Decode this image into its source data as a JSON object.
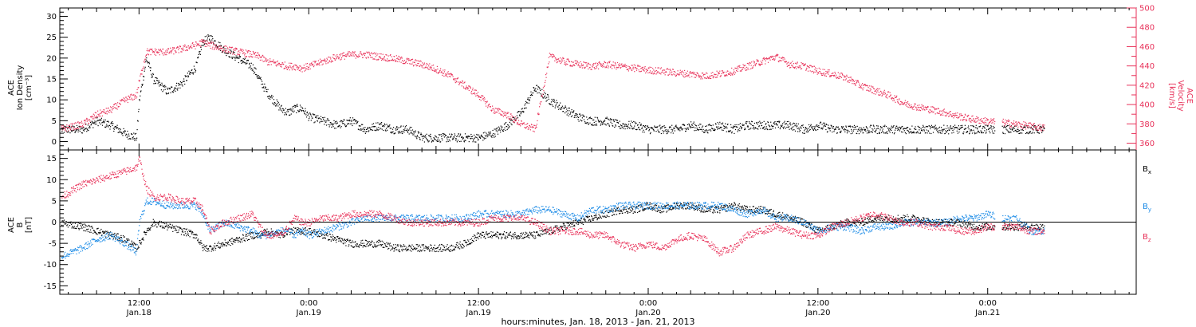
{
  "colors": {
    "black": "#000000",
    "red": "#e8325a",
    "blue": "#1a8ae6"
  },
  "x_axis": {
    "title": "hours:minutes, Jan. 18, 2013 - Jan. 21, 2013",
    "start_hour": 6.4,
    "end_hour": 82.5,
    "ticks": [
      {
        "hour": 12,
        "time": "12:00",
        "date": "Jan.18"
      },
      {
        "hour": 24,
        "time": "0:00",
        "date": "Jan.19"
      },
      {
        "hour": 36,
        "time": "12:00",
        "date": "Jan.19"
      },
      {
        "hour": 48,
        "time": "0:00",
        "date": "Jan.20"
      },
      {
        "hour": 60,
        "time": "12:00",
        "date": "Jan.20"
      },
      {
        "hour": 72,
        "time": "0:00",
        "date": "Jan.21"
      }
    ]
  },
  "chart_data": [
    {
      "type": "scatter",
      "panel": "top",
      "left_axis": {
        "label_lines": [
          "ACE",
          "Ion Density",
          "[cm⁻³]"
        ],
        "ylim": [
          -2,
          32
        ],
        "ticks": [
          0,
          5,
          10,
          15,
          20,
          25,
          30
        ]
      },
      "right_axis": {
        "label_lines": [
          "ACE",
          "Velocity",
          "[km/s]"
        ],
        "ylim": [
          353,
          500
        ],
        "ticks": [
          360,
          380,
          400,
          420,
          440,
          460,
          480,
          500
        ]
      },
      "series": [
        {
          "axis": "left",
          "color": "black",
          "hours": [
            6.5,
            8,
            9,
            10,
            11,
            11.8,
            12,
            12.5,
            13,
            14,
            15,
            16,
            16.5,
            17,
            18,
            19,
            20,
            20.5,
            21,
            22,
            22.5,
            23,
            23.5,
            24,
            25,
            26,
            27,
            28,
            29,
            30,
            31,
            32,
            33,
            34,
            35,
            36,
            37,
            38,
            39,
            40,
            41,
            42,
            43,
            44,
            45,
            46,
            47,
            48,
            49,
            50,
            51,
            52,
            53,
            54,
            55,
            56,
            57,
            58,
            59,
            60,
            61,
            62,
            63,
            64,
            65,
            66,
            67,
            68,
            69,
            70,
            71,
            72,
            73,
            74,
            75,
            76
          ],
          "values": [
            3,
            3,
            5,
            4,
            2,
            1,
            10,
            20,
            15,
            12,
            14,
            18,
            24,
            25,
            22,
            20,
            18,
            15,
            12,
            8,
            7,
            8,
            8,
            6,
            5,
            4,
            5,
            3,
            4,
            3,
            3,
            1,
            1,
            1,
            1,
            1,
            2,
            4,
            7,
            13,
            10,
            8,
            6,
            5,
            5,
            4,
            4,
            3,
            3,
            3,
            4,
            3,
            4,
            3,
            4,
            4,
            4,
            4,
            3,
            4,
            3,
            3,
            3,
            3,
            3,
            3,
            3,
            3,
            3,
            3,
            3,
            3,
            3,
            3,
            3,
            3
          ]
        },
        {
          "axis": "right",
          "color": "red",
          "hours": [
            6.5,
            8,
            9,
            10,
            11,
            11.8,
            12,
            12.5,
            13,
            14,
            15,
            16,
            16.5,
            17,
            18,
            19,
            20,
            20.5,
            21,
            22,
            22.5,
            23,
            23.5,
            24,
            25,
            26,
            27,
            28,
            29,
            30,
            31,
            32,
            33,
            34,
            35,
            36,
            37,
            38,
            39,
            40,
            41,
            42,
            43,
            44,
            45,
            46,
            47,
            48,
            49,
            50,
            51,
            52,
            53,
            54,
            55,
            56,
            57,
            58,
            59,
            60,
            61,
            62,
            63,
            64,
            65,
            66,
            67,
            68,
            69,
            70,
            71,
            72,
            73,
            74,
            75,
            76
          ],
          "values": [
            375,
            380,
            390,
            395,
            405,
            410,
            425,
            455,
            455,
            455,
            458,
            462,
            465,
            462,
            458,
            455,
            452,
            450,
            445,
            442,
            440,
            440,
            438,
            440,
            445,
            450,
            452,
            452,
            450,
            448,
            445,
            442,
            437,
            430,
            420,
            410,
            395,
            390,
            380,
            375,
            450,
            445,
            442,
            440,
            442,
            440,
            438,
            436,
            435,
            433,
            432,
            430,
            432,
            435,
            440,
            445,
            450,
            442,
            440,
            435,
            432,
            428,
            420,
            415,
            410,
            402,
            398,
            395,
            392,
            388,
            385,
            383,
            382,
            380,
            378,
            376
          ]
        }
      ]
    },
    {
      "type": "scatter",
      "panel": "bottom",
      "left_axis": {
        "label_lines": [
          "ACE",
          "B",
          "[nT]"
        ],
        "ylim": [
          -17,
          17
        ],
        "ticks": [
          -15,
          -10,
          -5,
          0,
          5,
          10,
          15
        ]
      },
      "legend": [
        {
          "label": "B",
          "sub": "x",
          "color": "black"
        },
        {
          "label": "B",
          "sub": "y",
          "color": "blue"
        },
        {
          "label": "B",
          "sub": "z",
          "color": "red"
        }
      ],
      "series": [
        {
          "name": "Bx",
          "color": "black",
          "hours": [
            6.5,
            8,
            9,
            10,
            11,
            11.8,
            12,
            12.5,
            13,
            14,
            15,
            16,
            16.5,
            17,
            18,
            19,
            20,
            20.5,
            21,
            22,
            22.5,
            23,
            23.5,
            24,
            25,
            26,
            27,
            28,
            29,
            30,
            31,
            32,
            33,
            34,
            35,
            36,
            37,
            38,
            39,
            40,
            41,
            42,
            43,
            44,
            45,
            46,
            47,
            48,
            49,
            50,
            51,
            52,
            53,
            54,
            55,
            56,
            57,
            58,
            59,
            60,
            61,
            62,
            63,
            64,
            65,
            66,
            67,
            68,
            69,
            70,
            71,
            72,
            73,
            74,
            75,
            76
          ],
          "values": [
            0,
            -1,
            -2,
            -3,
            -4,
            -6,
            -5,
            -2,
            0,
            -1,
            -2,
            -3,
            -6,
            -6,
            -5,
            -4,
            -3,
            -3,
            -2,
            -3,
            -2,
            -2,
            -2,
            -2,
            -3,
            -4,
            -5,
            -5,
            -5,
            -6,
            -6,
            -6,
            -6,
            -6,
            -5,
            -3,
            -3,
            -3,
            -3,
            -3,
            -2,
            -1,
            0,
            1,
            2,
            3,
            3,
            4,
            3,
            4,
            4,
            3,
            3,
            4,
            3,
            3,
            2,
            1,
            0,
            -2,
            -1,
            0,
            0,
            1,
            1,
            1,
            1,
            0,
            0,
            0,
            -1,
            -1,
            -1,
            -1,
            -1,
            -1
          ]
        },
        {
          "name": "By",
          "color": "blue",
          "hours": [
            6.5,
            8,
            9,
            10,
            11,
            11.8,
            12,
            12.5,
            13,
            14,
            15,
            16,
            16.5,
            17,
            18,
            19,
            20,
            20.5,
            21,
            22,
            22.5,
            23,
            23.5,
            24,
            25,
            26,
            27,
            28,
            29,
            30,
            31,
            32,
            33,
            34,
            35,
            36,
            37,
            38,
            39,
            40,
            41,
            42,
            43,
            44,
            45,
            46,
            47,
            48,
            49,
            50,
            51,
            52,
            53,
            54,
            55,
            56,
            57,
            58,
            59,
            60,
            61,
            62,
            63,
            64,
            65,
            66,
            67,
            68,
            69,
            70,
            71,
            72,
            73,
            74,
            75,
            76
          ],
          "values": [
            -8,
            -6,
            -4,
            -3,
            -5,
            -7,
            0,
            5,
            5,
            4,
            4,
            4,
            2,
            -2,
            0,
            -1,
            -2,
            -3,
            -3,
            -2,
            -2,
            -3,
            -2,
            -3,
            -2,
            -1,
            0,
            1,
            1,
            1,
            1,
            1,
            1,
            1,
            1,
            2,
            2,
            2,
            2,
            3,
            3,
            2,
            1,
            3,
            3,
            4,
            4,
            4,
            4,
            4,
            4,
            4,
            4,
            3,
            2,
            3,
            1,
            1,
            0,
            -2,
            -1,
            -1,
            -2,
            -1,
            -1,
            0,
            0,
            0,
            0,
            1,
            1,
            2,
            1,
            1,
            -2,
            -2
          ]
        },
        {
          "name": "Bz",
          "color": "red",
          "hours": [
            6.5,
            8,
            9,
            10,
            11,
            11.8,
            12,
            12.5,
            13,
            14,
            15,
            16,
            16.5,
            17,
            18,
            19,
            20,
            20.5,
            21,
            22,
            22.5,
            23,
            23.5,
            24,
            25,
            26,
            27,
            28,
            29,
            30,
            31,
            32,
            33,
            34,
            35,
            36,
            37,
            38,
            39,
            40,
            41,
            42,
            43,
            44,
            45,
            46,
            47,
            48,
            49,
            50,
            51,
            52,
            53,
            54,
            55,
            56,
            57,
            58,
            59,
            60,
            61,
            62,
            63,
            64,
            65,
            66,
            67,
            68,
            69,
            70,
            71,
            72,
            73,
            74,
            75,
            76
          ],
          "values": [
            6,
            9,
            10,
            11,
            12,
            13,
            15,
            8,
            6,
            6,
            5,
            5,
            3,
            -2,
            0,
            1,
            2,
            -1,
            -3,
            -3,
            -1,
            1,
            0,
            0,
            1,
            1,
            2,
            2,
            2,
            1,
            0,
            0,
            0,
            0,
            0,
            0,
            1,
            1,
            1,
            0,
            -2,
            -2,
            -2,
            -3,
            -3,
            -5,
            -6,
            -5,
            -6,
            -4,
            -3,
            -4,
            -7,
            -6,
            -3,
            -2,
            -1,
            -2,
            -3,
            -3,
            -1,
            0,
            1,
            2,
            1,
            0,
            0,
            -1,
            -1,
            -2,
            -2,
            -1,
            -1,
            -1,
            -2,
            -2
          ]
        }
      ]
    }
  ]
}
